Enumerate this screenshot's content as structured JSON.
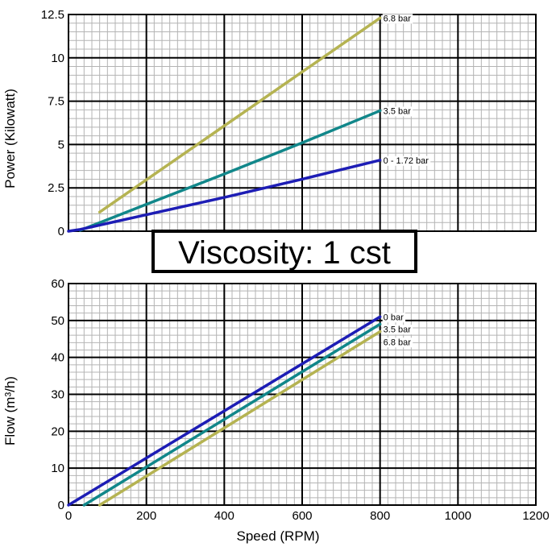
{
  "banner": "Viscosity: 1 cst",
  "xlabel": "Speed (RPM)",
  "chart_data": [
    {
      "type": "line",
      "title": "",
      "xlabel": "",
      "ylabel": "Power (Kilowatt)",
      "xlim": [
        0,
        1200
      ],
      "ylim": [
        0,
        12.5
      ],
      "xticks": [
        0,
        200,
        400,
        600,
        800,
        1000,
        1200
      ],
      "yticks": [
        "0",
        "2.5",
        "5",
        "7.5",
        "10",
        "12.5"
      ],
      "grid": true,
      "series": [
        {
          "name": "6.8 bar",
          "color": "#b5b352",
          "x": [
            80,
            800
          ],
          "y": [
            1.1,
            12.3
          ]
        },
        {
          "name": "3.5 bar",
          "color": "#11878a",
          "x": [
            30,
            200,
            400,
            600,
            800
          ],
          "y": [
            0.05,
            1.55,
            3.3,
            5.1,
            6.95
          ]
        },
        {
          "name": "0 - 1.72 bar",
          "color": "#1d1db5",
          "x": [
            0,
            30,
            200,
            400,
            600,
            800
          ],
          "y": [
            0,
            0.1,
            0.95,
            1.95,
            3.0,
            4.1
          ]
        }
      ]
    },
    {
      "type": "line",
      "title": "",
      "xlabel": "Speed (RPM)",
      "ylabel": "Flow (m³/h)",
      "xlim": [
        0,
        1200
      ],
      "ylim": [
        0,
        60
      ],
      "xticks": [
        "0",
        "200",
        "400",
        "600",
        "800",
        "1000",
        "1200"
      ],
      "yticks": [
        "0",
        "10",
        "20",
        "30",
        "40",
        "50",
        "60"
      ],
      "grid": true,
      "series": [
        {
          "name": "0 bar",
          "color": "#1d1db5",
          "x": [
            0,
            800
          ],
          "y": [
            0,
            51
          ]
        },
        {
          "name": "3.5 bar",
          "color": "#11878a",
          "x": [
            40,
            800
          ],
          "y": [
            0,
            49
          ]
        },
        {
          "name": "6.8 bar",
          "color": "#b5b352",
          "x": [
            80,
            800
          ],
          "y": [
            0,
            47
          ]
        }
      ]
    }
  ]
}
